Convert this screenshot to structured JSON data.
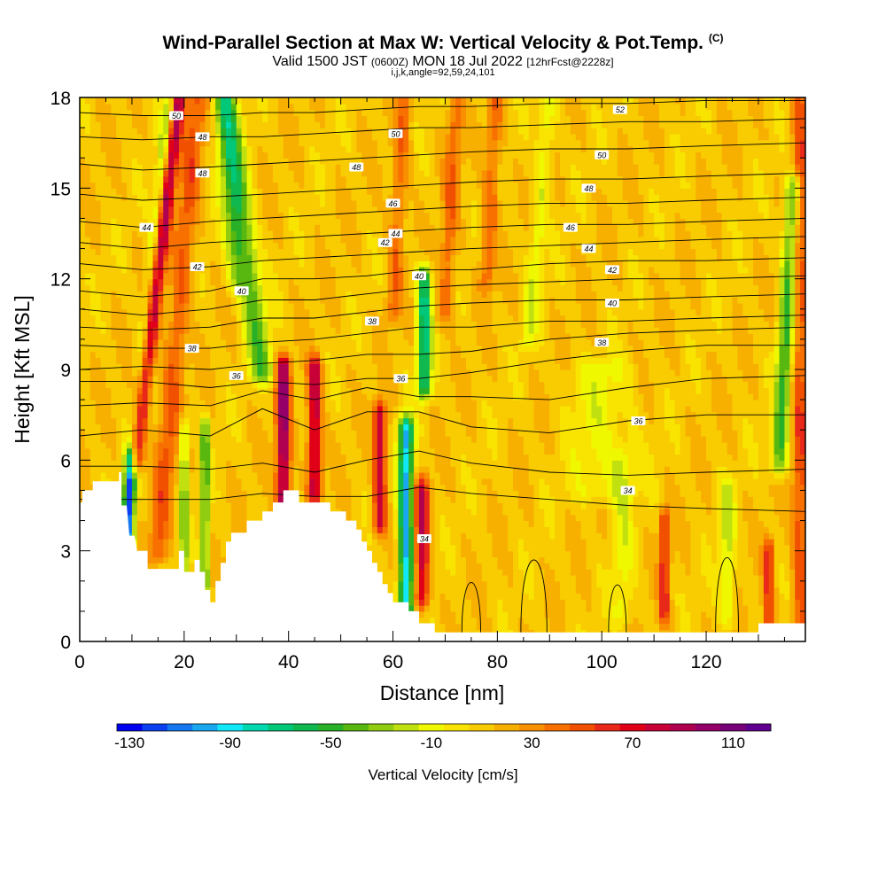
{
  "header": {
    "title": "Wind-Parallel Section at Max W: Vertical Velocity & Pot.Temp.",
    "title_mark": "(C)",
    "valid_prefix": "Valid 1500 JST",
    "valid_utc": "(0600Z)",
    "valid_date": "MON 18 Jul 2022",
    "forecast": "[12hrFcst@2228z]",
    "indices": "i,j,k,angle=92,59,24,101"
  },
  "chart_data": {
    "type": "heatmap",
    "xlabel": "Distance [nm]",
    "ylabel": "Height [Kft MSL]",
    "xlim": [
      0,
      139
    ],
    "ylim": [
      0,
      18
    ],
    "x_ticks": [
      "0",
      "20",
      "40",
      "60",
      "80",
      "100",
      "120"
    ],
    "x_tick_values": [
      0,
      20,
      40,
      60,
      80,
      100,
      120
    ],
    "y_ticks": [
      "0",
      "3",
      "6",
      "9",
      "12",
      "15",
      "18"
    ],
    "y_tick_values": [
      0,
      3,
      6,
      9,
      12,
      15,
      18
    ],
    "colorbar": {
      "title": "Vertical Velocity [cm/s]",
      "labels": [
        "-130",
        "-90",
        "-50",
        "-10",
        "30",
        "70",
        "110"
      ],
      "label_values": [
        -130,
        -90,
        -50,
        -10,
        30,
        70,
        110
      ],
      "min": -135,
      "max": 125,
      "step": 10,
      "colors": [
        "#0000f0",
        "#0a40f0",
        "#1478f0",
        "#18a8f0",
        "#10e8f8",
        "#00d8b0",
        "#00c878",
        "#10b850",
        "#28b028",
        "#58b810",
        "#90cc10",
        "#c0e010",
        "#f0f800",
        "#f8e400",
        "#f8cc00",
        "#f8b000",
        "#f89000",
        "#f87000",
        "#f05000",
        "#e82818",
        "#e00018",
        "#c80038",
        "#b00050",
        "#940068",
        "#780078",
        "#600090"
      ]
    },
    "background_w": 12,
    "w_features": [
      {
        "x": 10.5,
        "z0": 6,
        "z1": 18,
        "w": 85,
        "tilt": 0.7,
        "width": 1.4
      },
      {
        "x": 8,
        "z0": 2.5,
        "z1": 18,
        "w": -45,
        "tilt": 0.6,
        "width": 1.2
      },
      {
        "x": 9.5,
        "z0": 3.5,
        "z1": 6,
        "w": -95,
        "tilt": 0,
        "width": 1.0
      },
      {
        "x": 15,
        "z0": 3,
        "z1": 18,
        "w": 35,
        "tilt": 0.5,
        "width": 2.0
      },
      {
        "x": 20,
        "z0": 2.5,
        "z1": 7,
        "w": -50,
        "tilt": 0,
        "width": 0.8
      },
      {
        "x": 24,
        "z0": 2,
        "z1": 7,
        "w": -60,
        "tilt": 0,
        "width": 0.8
      },
      {
        "x": 35,
        "z0": 9,
        "z1": 18,
        "w": -55,
        "tilt": -0.8,
        "width": 2.2
      },
      {
        "x": 30,
        "z0": 12,
        "z1": 18,
        "w": -30,
        "tilt": -0.4,
        "width": 2.0
      },
      {
        "x": 39,
        "z0": 4,
        "z1": 9,
        "w": 90,
        "tilt": 0,
        "width": 1.3
      },
      {
        "x": 45,
        "z0": 5,
        "z1": 9,
        "w": 75,
        "tilt": 0,
        "width": 1.3
      },
      {
        "x": 57.5,
        "z0": 4,
        "z1": 7.5,
        "w": 70,
        "tilt": 0,
        "width": 1.2
      },
      {
        "x": 62.5,
        "z0": 1,
        "z1": 7,
        "w": -110,
        "tilt": 0,
        "width": 1.4
      },
      {
        "x": 65.5,
        "z0": 1.5,
        "z1": 5,
        "w": 70,
        "tilt": 0,
        "width": 1.4
      },
      {
        "x": 66,
        "z0": 8.5,
        "z1": 12,
        "w": -85,
        "tilt": 0,
        "width": 1.3
      },
      {
        "x": 60,
        "z0": 11,
        "z1": 18,
        "w": 30,
        "tilt": 0.3,
        "width": 1.5
      },
      {
        "x": 70,
        "z0": 11,
        "z1": 18,
        "w": 30,
        "tilt": 0.3,
        "width": 1.5
      },
      {
        "x": 78,
        "z0": 12,
        "z1": 18,
        "w": 30,
        "tilt": 0.3,
        "width": 1.5
      },
      {
        "x": 86,
        "z0": 10,
        "z1": 18,
        "w": -25,
        "tilt": 0.5,
        "width": 1.5
      },
      {
        "x": 100,
        "z0": 5,
        "z1": 9,
        "w": -20,
        "tilt": 0,
        "width": 6.0
      },
      {
        "x": 104,
        "z0": 1,
        "z1": 6,
        "w": -20,
        "tilt": 0,
        "width": 2.0
      },
      {
        "x": 112,
        "z0": 1,
        "z1": 4,
        "w": 50,
        "tilt": 0,
        "width": 1.0
      },
      {
        "x": 124,
        "z0": 1,
        "z1": 5,
        "w": -30,
        "tilt": 0,
        "width": 1.5
      },
      {
        "x": 132,
        "z0": 0.5,
        "z1": 3,
        "w": 50,
        "tilt": 0,
        "width": 1.0
      },
      {
        "x": 134,
        "z0": 6,
        "z1": 15,
        "w": -60,
        "tilt": 0.3,
        "width": 1.5
      },
      {
        "x": 138,
        "z0": 0.5,
        "z1": 18,
        "w": 40,
        "tilt": 0,
        "width": 1.5
      }
    ],
    "terrain": [
      [
        0,
        4.6
      ],
      [
        0.5,
        4.6
      ],
      [
        0.5,
        5.0
      ],
      [
        2.5,
        5.0
      ],
      [
        2.5,
        5.3
      ],
      [
        7.5,
        5.3
      ],
      [
        7.5,
        5.6
      ],
      [
        8,
        5.6
      ],
      [
        8,
        4.5
      ],
      [
        9,
        4.5
      ],
      [
        9.5,
        3.5
      ],
      [
        10.5,
        3.5
      ],
      [
        11,
        3.0
      ],
      [
        13,
        3.0
      ],
      [
        13,
        2.4
      ],
      [
        19,
        2.4
      ],
      [
        19,
        3.0
      ],
      [
        20,
        3.0
      ],
      [
        20,
        2.3
      ],
      [
        22,
        2.3
      ],
      [
        22,
        2.7
      ],
      [
        23,
        2.7
      ],
      [
        23,
        2.3
      ],
      [
        24,
        2.3
      ],
      [
        24,
        1.7
      ],
      [
        25,
        1.7
      ],
      [
        25,
        1.3
      ],
      [
        26,
        1.3
      ],
      [
        26,
        2.0
      ],
      [
        27,
        2.0
      ],
      [
        27,
        2.6
      ],
      [
        28,
        2.6
      ],
      [
        28,
        3.3
      ],
      [
        29,
        3.3
      ],
      [
        29,
        3.6
      ],
      [
        32,
        3.6
      ],
      [
        32,
        4.0
      ],
      [
        35,
        4.0
      ],
      [
        35,
        4.3
      ],
      [
        37,
        4.3
      ],
      [
        37,
        4.6
      ],
      [
        39,
        4.6
      ],
      [
        39,
        5.0
      ],
      [
        42,
        5.0
      ],
      [
        42,
        4.6
      ],
      [
        48,
        4.6
      ],
      [
        48,
        4.3
      ],
      [
        51,
        4.3
      ],
      [
        51,
        4.0
      ],
      [
        53,
        4.0
      ],
      [
        53,
        3.7
      ],
      [
        54,
        3.7
      ],
      [
        54,
        3.3
      ],
      [
        55,
        3.3
      ],
      [
        55,
        3.0
      ],
      [
        56,
        3.0
      ],
      [
        56,
        2.6
      ],
      [
        57,
        2.6
      ],
      [
        57,
        2.3
      ],
      [
        58,
        2.3
      ],
      [
        58,
        1.9
      ],
      [
        59,
        1.9
      ],
      [
        59,
        1.6
      ],
      [
        60,
        1.6
      ],
      [
        60,
        1.3
      ],
      [
        63,
        1.3
      ],
      [
        63,
        1.0
      ],
      [
        65,
        1.0
      ],
      [
        65,
        0.6
      ],
      [
        68,
        0.6
      ],
      [
        68,
        0.3
      ],
      [
        130,
        0.3
      ],
      [
        130,
        0.6
      ],
      [
        139,
        0.6
      ],
      [
        139,
        0
      ]
    ],
    "theta_levels": [
      {
        "z": [
          4.7,
          4.7,
          4.7,
          4.9,
          4.8,
          4.8,
          5.1,
          4.9,
          4.7,
          4.5,
          4.4,
          4.3
        ],
        "label": "34",
        "label_x": 105
      },
      {
        "z": [
          5.8,
          5.8,
          5.7,
          5.9,
          5.6,
          6.0,
          6.3,
          5.9,
          5.6,
          5.5,
          5.6,
          5.7
        ],
        "label": "",
        "label_x": 0
      },
      {
        "z": [
          6.8,
          7.0,
          6.8,
          7.7,
          7.0,
          7.6,
          7.6,
          7.1,
          6.9,
          7.3,
          7.5,
          7.5
        ],
        "label": "36",
        "label_x": 107
      },
      {
        "z": [
          7.8,
          7.9,
          7.8,
          8.3,
          8.0,
          8.4,
          8.1,
          8.1,
          8.0,
          8.4,
          8.7,
          8.8
        ],
        "label": "",
        "label_x": 0
      },
      {
        "z": [
          8.6,
          8.6,
          8.4,
          8.6,
          8.5,
          8.7,
          8.7,
          8.9,
          9.3,
          9.6,
          9.8,
          9.8
        ],
        "label": "36",
        "label_x": 30
      },
      {
        "z": [
          9.0,
          9.1,
          9.0,
          9.2,
          9.3,
          9.5,
          9.5,
          9.6,
          10.0,
          10.2,
          10.3,
          10.4
        ],
        "label": "",
        "label_x": 0
      },
      {
        "z": [
          9.8,
          9.7,
          9.7,
          9.9,
          10.0,
          10.2,
          10.4,
          10.4,
          10.6,
          10.6,
          10.7,
          10.8
        ],
        "label": "38",
        "label_x": 100
      },
      {
        "z": [
          10.4,
          10.3,
          10.4,
          10.7,
          10.7,
          10.9,
          11.1,
          11.2,
          11.3,
          11.3,
          11.4,
          11.5
        ],
        "label": "",
        "label_x": 0
      },
      {
        "z": [
          11.0,
          10.8,
          11.0,
          11.3,
          11.3,
          11.5,
          11.7,
          11.8,
          11.9,
          12.0,
          12.0,
          12.1
        ],
        "label": "40",
        "label_x": 102
      },
      {
        "z": [
          11.6,
          11.4,
          11.6,
          12.0,
          12.0,
          12.1,
          12.3,
          12.3,
          12.5,
          12.6,
          12.6,
          12.7
        ],
        "label": "",
        "label_x": 0
      },
      {
        "z": [
          12.5,
          12.3,
          12.4,
          12.6,
          12.7,
          12.8,
          12.9,
          13.0,
          13.1,
          13.2,
          13.3,
          13.4
        ],
        "label": "42",
        "label_x": 102
      },
      {
        "z": [
          13.2,
          13.0,
          13.2,
          13.3,
          13.4,
          13.5,
          13.6,
          13.7,
          13.8,
          13.8,
          13.9,
          14.0
        ],
        "label": "44",
        "label_x": 97
      },
      {
        "z": [
          13.9,
          13.7,
          13.9,
          14.0,
          14.1,
          14.2,
          14.3,
          14.4,
          14.5,
          14.5,
          14.6,
          14.7
        ],
        "label": "46",
        "label_x": 94
      },
      {
        "z": [
          14.8,
          14.6,
          14.7,
          14.8,
          14.9,
          15.0,
          15.1,
          15.2,
          15.3,
          15.3,
          15.4,
          15.5
        ],
        "label": "48",
        "label_x": 97
      },
      {
        "z": [
          15.8,
          15.6,
          15.7,
          15.8,
          15.9,
          16.0,
          16.1,
          16.2,
          16.3,
          16.3,
          16.4,
          16.5
        ],
        "label": "50",
        "label_x": 100
      },
      {
        "z": [
          16.7,
          16.6,
          16.7,
          16.7,
          16.8,
          16.9,
          17.0,
          17.0,
          17.1,
          17.2,
          17.2,
          17.3
        ],
        "label": "52",
        "label_x": 104
      },
      {
        "z": [
          17.5,
          17.4,
          17.4,
          17.5,
          17.5,
          17.6,
          17.7,
          17.7,
          17.8,
          17.8,
          17.9,
          17.9
        ],
        "label": "",
        "label_x": 0
      }
    ],
    "theta_x": [
      0,
      12,
      25,
      35,
      45,
      55,
      65,
      75,
      90,
      105,
      120,
      139
    ],
    "contour_labels": [
      {
        "text": "50",
        "x": 18.5,
        "y": 17.4
      },
      {
        "text": "48",
        "x": 23.5,
        "y": 16.7
      },
      {
        "text": "48",
        "x": 23.5,
        "y": 15.5
      },
      {
        "text": "44",
        "x": 12.8,
        "y": 13.7
      },
      {
        "text": "42",
        "x": 22.5,
        "y": 12.4
      },
      {
        "text": "40",
        "x": 31,
        "y": 11.6
      },
      {
        "text": "38",
        "x": 21.5,
        "y": 9.7
      },
      {
        "text": "36",
        "x": 30,
        "y": 8.8
      },
      {
        "text": "48",
        "x": 53,
        "y": 15.7
      },
      {
        "text": "46",
        "x": 60,
        "y": 14.5
      },
      {
        "text": "44",
        "x": 60.5,
        "y": 13.5
      },
      {
        "text": "42",
        "x": 58.5,
        "y": 13.2
      },
      {
        "text": "40",
        "x": 65,
        "y": 12.1
      },
      {
        "text": "38",
        "x": 56,
        "y": 10.6
      },
      {
        "text": "36",
        "x": 61.5,
        "y": 8.7
      },
      {
        "text": "34",
        "x": 66,
        "y": 3.4
      },
      {
        "text": "50",
        "x": 60.5,
        "y": 16.8
      },
      {
        "text": "52",
        "x": 103.5,
        "y": 17.6
      },
      {
        "text": "50",
        "x": 100,
        "y": 16.1
      },
      {
        "text": "48",
        "x": 97.5,
        "y": 15.0
      },
      {
        "text": "46",
        "x": 94,
        "y": 13.7
      },
      {
        "text": "44",
        "x": 97.5,
        "y": 13.0
      },
      {
        "text": "42",
        "x": 102,
        "y": 12.3
      },
      {
        "text": "40",
        "x": 102,
        "y": 11.2
      },
      {
        "text": "38",
        "x": 100,
        "y": 9.9
      },
      {
        "text": "36",
        "x": 107,
        "y": 7.3
      },
      {
        "text": "34",
        "x": 105,
        "y": 5.0
      }
    ]
  }
}
